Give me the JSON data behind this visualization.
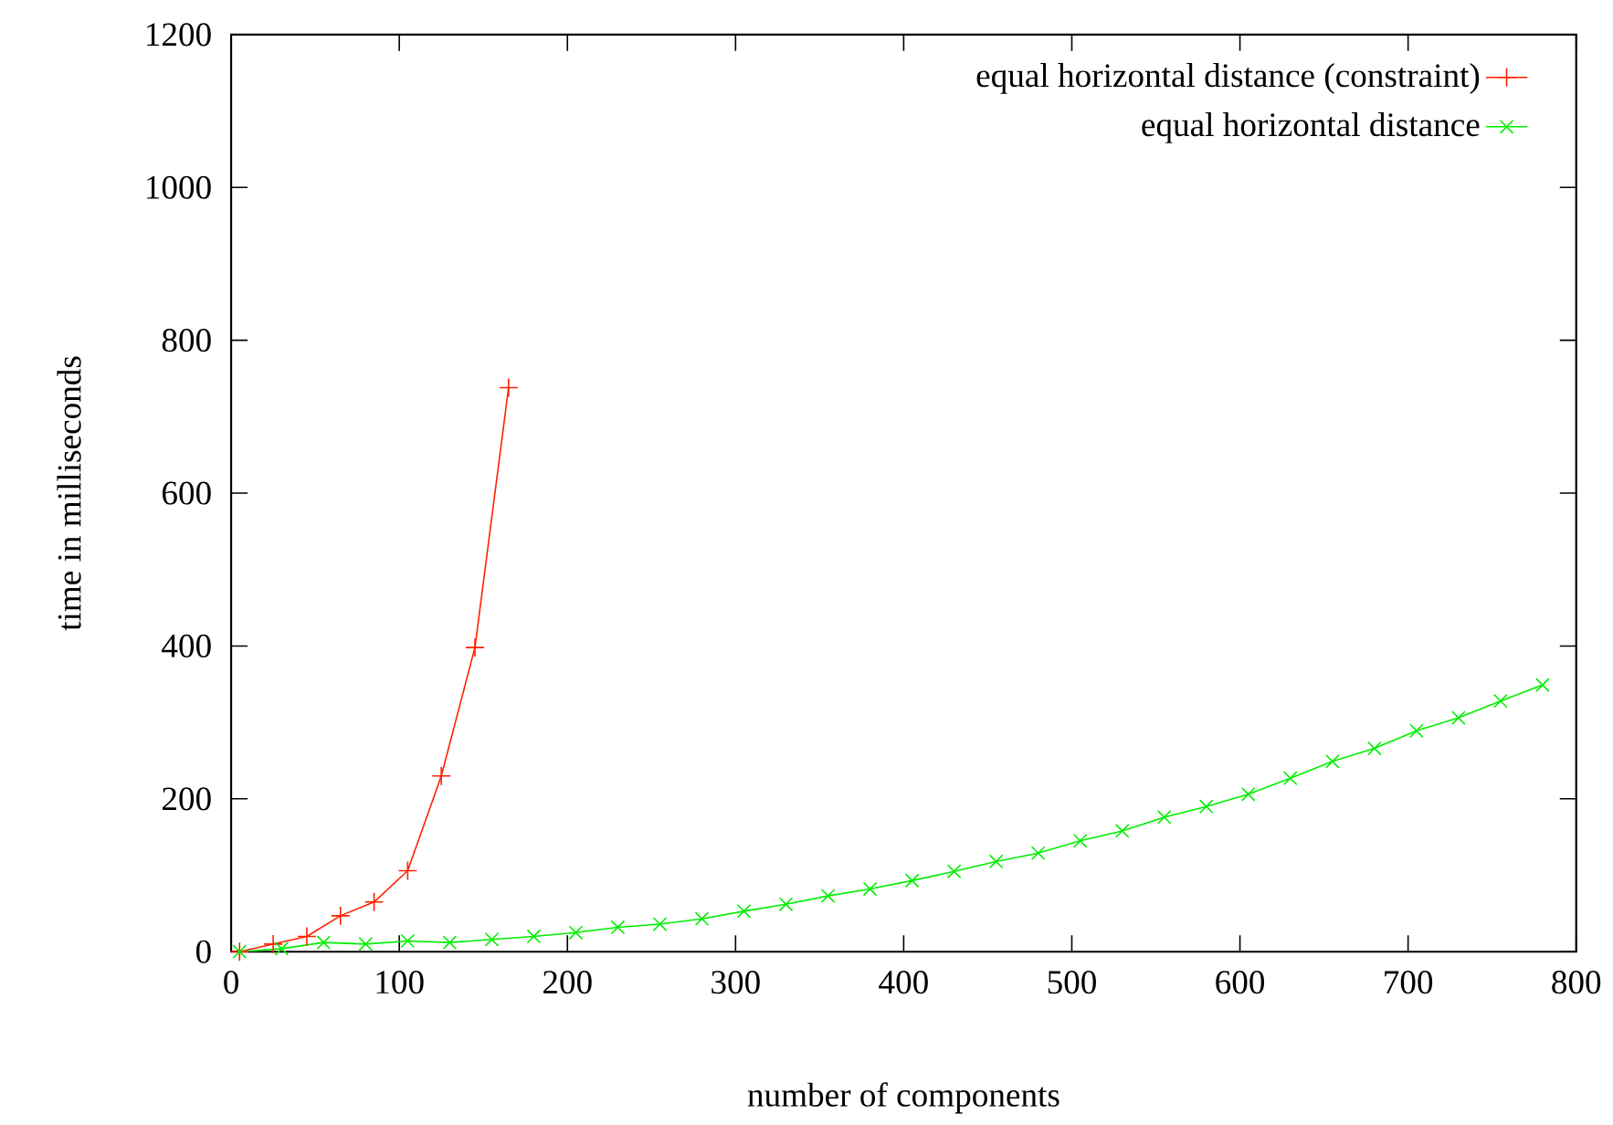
{
  "chart_data": {
    "type": "line",
    "xlabel": "number of components",
    "ylabel": "time in milliseconds",
    "xlim": [
      0,
      800
    ],
    "ylim": [
      0,
      1200
    ],
    "xticks": [
      0,
      100,
      200,
      300,
      400,
      500,
      600,
      700,
      800
    ],
    "yticks": [
      0,
      200,
      400,
      600,
      800,
      1000,
      1200
    ],
    "legend": "top right",
    "grid": false,
    "series": [
      {
        "name": "equal horizontal distance (constraint)",
        "color": "#ff2000",
        "marker": "plus",
        "x": [
          5,
          25,
          45,
          65,
          85,
          105,
          125,
          145,
          165
        ],
        "values": [
          0,
          10,
          20,
          47,
          65,
          106,
          230,
          398,
          738
        ]
      },
      {
        "name": "equal horizontal distance",
        "color": "#00ee00",
        "marker": "cross",
        "x": [
          5,
          30,
          55,
          80,
          105,
          130,
          155,
          180,
          205,
          230,
          255,
          280,
          305,
          330,
          355,
          380,
          405,
          430,
          455,
          480,
          505,
          530,
          555,
          580,
          605,
          630,
          655,
          680,
          705,
          730,
          755,
          780
        ],
        "values": [
          0,
          4,
          12,
          10,
          14,
          12,
          16,
          20,
          25,
          32,
          36,
          43,
          53,
          62,
          73,
          82,
          93,
          105,
          118,
          129,
          145,
          158,
          176,
          190,
          206,
          227,
          249,
          266,
          289,
          306,
          328,
          349
        ]
      }
    ]
  }
}
